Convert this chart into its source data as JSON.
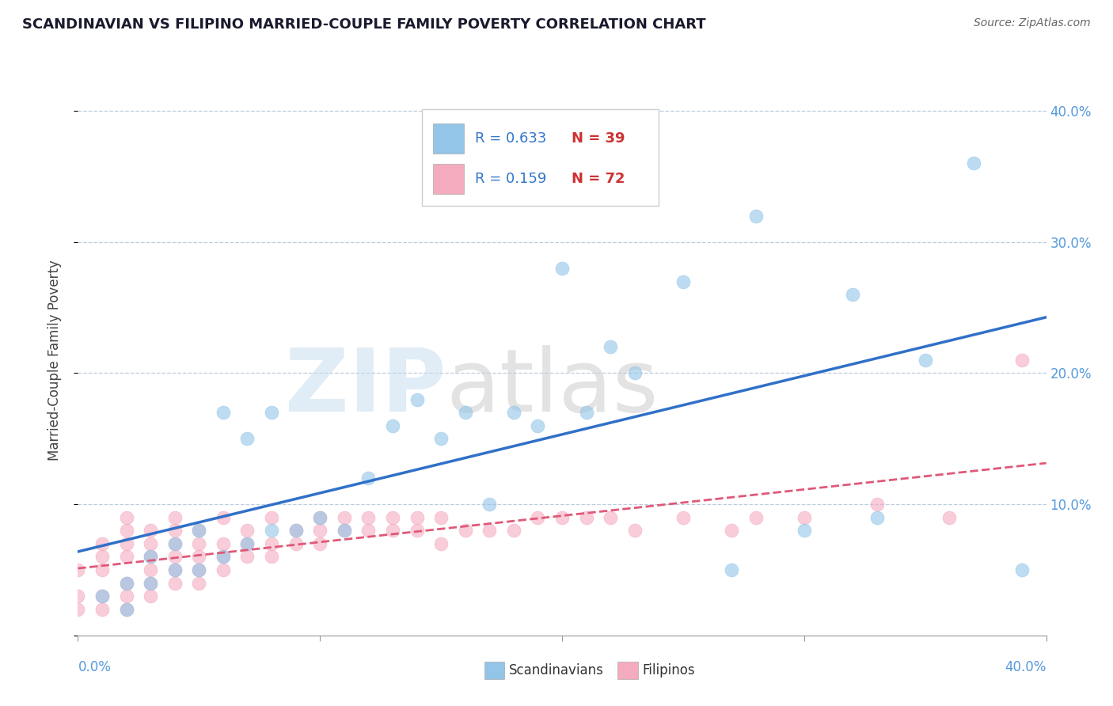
{
  "title": "SCANDINAVIAN VS FILIPINO MARRIED-COUPLE FAMILY POVERTY CORRELATION CHART",
  "source": "Source: ZipAtlas.com",
  "ylabel": "Married-Couple Family Poverty",
  "xlim": [
    0.0,
    0.4
  ],
  "ylim": [
    0.0,
    0.42
  ],
  "yticks": [
    0.0,
    0.1,
    0.2,
    0.3,
    0.4
  ],
  "ytick_labels": [
    "",
    "10.0%",
    "20.0%",
    "30.0%",
    "40.0%"
  ],
  "xticks": [
    0.0,
    0.1,
    0.2,
    0.3,
    0.4
  ],
  "xtick_labels": [
    "0.0%",
    "",
    "",
    "",
    "40.0%"
  ],
  "legend_r_scand": "R = 0.633",
  "legend_n_scand": "N = 39",
  "legend_r_filip": "R = 0.159",
  "legend_n_filip": "N = 72",
  "scand_color": "#92C5E8",
  "filip_color": "#F4ABBE",
  "scand_line_color": "#3070C8",
  "filip_line_color": "#E05878",
  "grid_color": "#BBCCDD",
  "scand_points": [
    [
      0.01,
      0.03
    ],
    [
      0.02,
      0.02
    ],
    [
      0.02,
      0.04
    ],
    [
      0.03,
      0.04
    ],
    [
      0.03,
      0.06
    ],
    [
      0.04,
      0.05
    ],
    [
      0.04,
      0.07
    ],
    [
      0.05,
      0.05
    ],
    [
      0.05,
      0.08
    ],
    [
      0.06,
      0.06
    ],
    [
      0.06,
      0.17
    ],
    [
      0.07,
      0.07
    ],
    [
      0.07,
      0.15
    ],
    [
      0.08,
      0.08
    ],
    [
      0.08,
      0.17
    ],
    [
      0.09,
      0.08
    ],
    [
      0.1,
      0.09
    ],
    [
      0.11,
      0.08
    ],
    [
      0.12,
      0.12
    ],
    [
      0.13,
      0.16
    ],
    [
      0.14,
      0.18
    ],
    [
      0.15,
      0.15
    ],
    [
      0.16,
      0.17
    ],
    [
      0.17,
      0.1
    ],
    [
      0.18,
      0.17
    ],
    [
      0.19,
      0.16
    ],
    [
      0.2,
      0.28
    ],
    [
      0.21,
      0.17
    ],
    [
      0.22,
      0.22
    ],
    [
      0.23,
      0.2
    ],
    [
      0.25,
      0.27
    ],
    [
      0.27,
      0.05
    ],
    [
      0.28,
      0.32
    ],
    [
      0.3,
      0.08
    ],
    [
      0.32,
      0.26
    ],
    [
      0.33,
      0.09
    ],
    [
      0.35,
      0.21
    ],
    [
      0.37,
      0.36
    ],
    [
      0.39,
      0.05
    ]
  ],
  "filip_points": [
    [
      0.0,
      0.02
    ],
    [
      0.0,
      0.03
    ],
    [
      0.0,
      0.05
    ],
    [
      0.01,
      0.02
    ],
    [
      0.01,
      0.03
    ],
    [
      0.01,
      0.05
    ],
    [
      0.01,
      0.06
    ],
    [
      0.01,
      0.07
    ],
    [
      0.02,
      0.02
    ],
    [
      0.02,
      0.03
    ],
    [
      0.02,
      0.04
    ],
    [
      0.02,
      0.06
    ],
    [
      0.02,
      0.07
    ],
    [
      0.02,
      0.08
    ],
    [
      0.02,
      0.09
    ],
    [
      0.03,
      0.03
    ],
    [
      0.03,
      0.04
    ],
    [
      0.03,
      0.05
    ],
    [
      0.03,
      0.06
    ],
    [
      0.03,
      0.07
    ],
    [
      0.03,
      0.08
    ],
    [
      0.04,
      0.04
    ],
    [
      0.04,
      0.05
    ],
    [
      0.04,
      0.06
    ],
    [
      0.04,
      0.07
    ],
    [
      0.04,
      0.08
    ],
    [
      0.04,
      0.09
    ],
    [
      0.05,
      0.04
    ],
    [
      0.05,
      0.05
    ],
    [
      0.05,
      0.06
    ],
    [
      0.05,
      0.07
    ],
    [
      0.05,
      0.08
    ],
    [
      0.06,
      0.05
    ],
    [
      0.06,
      0.06
    ],
    [
      0.06,
      0.07
    ],
    [
      0.06,
      0.09
    ],
    [
      0.07,
      0.06
    ],
    [
      0.07,
      0.07
    ],
    [
      0.07,
      0.08
    ],
    [
      0.08,
      0.06
    ],
    [
      0.08,
      0.07
    ],
    [
      0.08,
      0.09
    ],
    [
      0.09,
      0.07
    ],
    [
      0.09,
      0.08
    ],
    [
      0.1,
      0.07
    ],
    [
      0.1,
      0.08
    ],
    [
      0.1,
      0.09
    ],
    [
      0.11,
      0.08
    ],
    [
      0.11,
      0.09
    ],
    [
      0.12,
      0.08
    ],
    [
      0.12,
      0.09
    ],
    [
      0.13,
      0.08
    ],
    [
      0.13,
      0.09
    ],
    [
      0.14,
      0.08
    ],
    [
      0.14,
      0.09
    ],
    [
      0.15,
      0.07
    ],
    [
      0.15,
      0.09
    ],
    [
      0.16,
      0.08
    ],
    [
      0.17,
      0.08
    ],
    [
      0.18,
      0.08
    ],
    [
      0.19,
      0.09
    ],
    [
      0.2,
      0.09
    ],
    [
      0.21,
      0.09
    ],
    [
      0.22,
      0.09
    ],
    [
      0.23,
      0.08
    ],
    [
      0.25,
      0.09
    ],
    [
      0.27,
      0.08
    ],
    [
      0.28,
      0.09
    ],
    [
      0.3,
      0.09
    ],
    [
      0.33,
      0.1
    ],
    [
      0.36,
      0.09
    ],
    [
      0.39,
      0.21
    ]
  ]
}
